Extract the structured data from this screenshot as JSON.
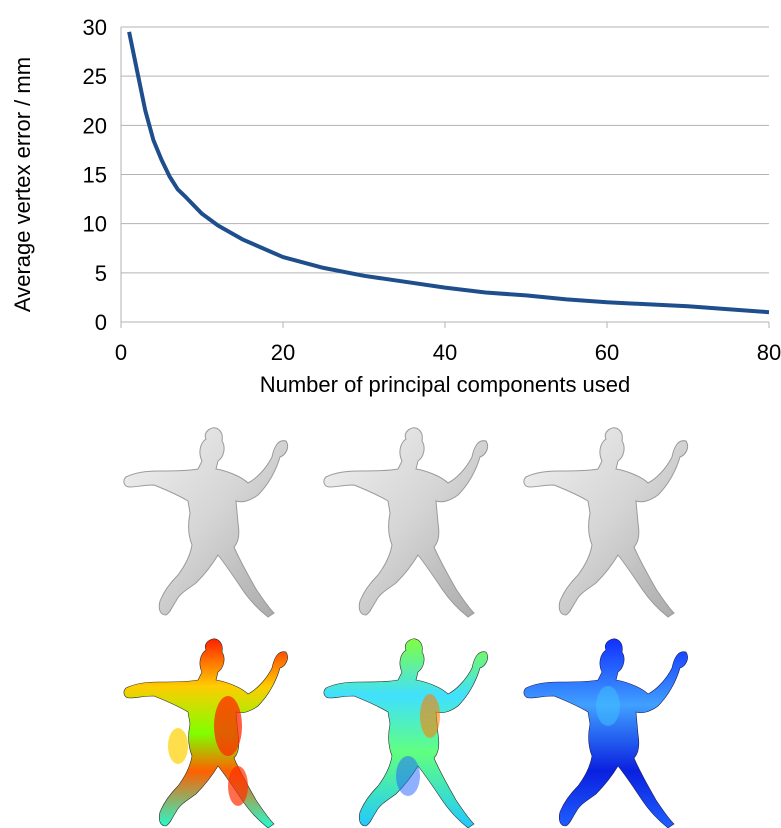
{
  "chart_data": {
    "type": "line",
    "title": "",
    "xlabel": "Number of principal components used",
    "ylabel": "Average vertex error / mm",
    "xlim": [
      0,
      80
    ],
    "ylim": [
      0,
      30
    ],
    "x_ticks": [
      "0",
      "20",
      "40",
      "60",
      "80"
    ],
    "y_ticks": [
      "0",
      "5",
      "10",
      "15",
      "20",
      "25",
      "30"
    ],
    "grid": "horizontal",
    "legend": "none",
    "series": [
      {
        "color": "#1f4e8c",
        "x": [
          1,
          2,
          3,
          4,
          5,
          6,
          7,
          8,
          10,
          12,
          15,
          20,
          25,
          30,
          35,
          40,
          45,
          50,
          55,
          60,
          65,
          70,
          75,
          80
        ],
        "y": [
          29.5,
          25.5,
          21.5,
          18.5,
          16.5,
          14.8,
          13.5,
          12.7,
          11.0,
          9.8,
          8.4,
          6.6,
          5.5,
          4.7,
          4.1,
          3.5,
          3.0,
          2.7,
          2.3,
          2.0,
          1.8,
          1.6,
          1.3,
          1.0
        ]
      }
    ]
  },
  "figures": {
    "row1_description_icon": "grey-shaded-mesh",
    "row2_description_icon": "error-heatmap-mesh",
    "heatmap_colors": [
      "#0000ff",
      "#00c8ff",
      "#00ff60",
      "#ffff00",
      "#ff0000"
    ],
    "mesh_color": "#d9d9d9"
  }
}
